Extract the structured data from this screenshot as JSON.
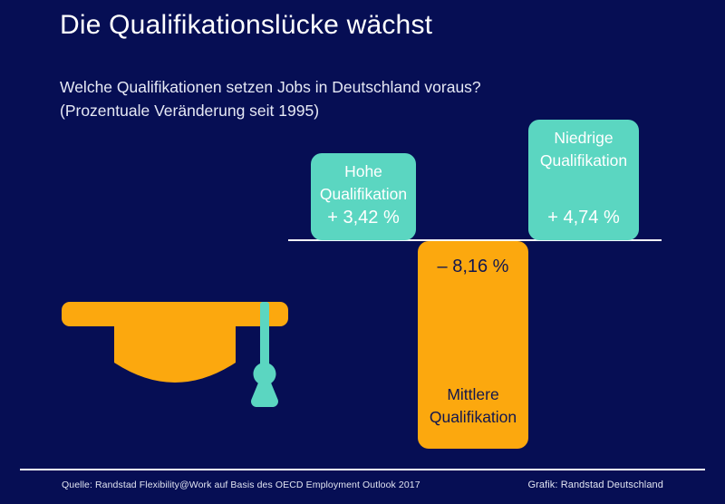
{
  "header": {
    "title": "Die Qualifikationslücke wächst",
    "subtitle_line1": "Welche Qualifikationen setzen Jobs in Deutschland voraus?",
    "subtitle_line2": "(Prozentuale Veränderung seit 1995)"
  },
  "chart_data": {
    "type": "bar",
    "title": "Die Qualifikationslücke wächst",
    "subtitle": "Welche Qualifikationen setzen Jobs in Deutschland voraus? (Prozentuale Veränderung seit 1995)",
    "unit": "%",
    "baseline": 0,
    "grid": false,
    "legend": false,
    "value_axis_shown": false,
    "categories": [
      "Hohe Qualifikation",
      "Niedrige Qualifikation",
      "Mittlere Qualifikation"
    ],
    "values": [
      3.42,
      4.74,
      -8.16
    ],
    "bars": [
      {
        "name_line1": "Hohe",
        "name_line2": "Qualifikation",
        "value": 3.42,
        "value_label": "+ 3,42 %",
        "color": "#5BD6C1",
        "text_color": "#FFFFFF"
      },
      {
        "name_line1": "Niedrige",
        "name_line2": "Qualifikation",
        "value": 4.74,
        "value_label": "+ 4,74 %",
        "color": "#5BD6C1",
        "text_color": "#FFFFFF"
      },
      {
        "name_line1": "Mittlere",
        "name_line2": "Qualifikation",
        "value": -8.16,
        "value_label": "– 8,16 %",
        "color": "#FCA80E",
        "text_color": "#12174F"
      }
    ]
  },
  "icons": {
    "graduation_cap": {
      "name": "graduation-cap-icon",
      "cap_color": "#FCA80E",
      "tassel_color": "#5BD6C1"
    }
  },
  "footer": {
    "source": "Quelle: Randstad Flexibility@Work auf Basis des OECD Employment Outlook 2017",
    "credit": "Grafik: Randstad Deutschland"
  },
  "colors": {
    "background": "#060E54",
    "axis_line": "#F4F5FB",
    "title_text": "#FFFFFF",
    "subtitle_text": "#E6E9F5",
    "footer_text": "#E2E5F2"
  }
}
